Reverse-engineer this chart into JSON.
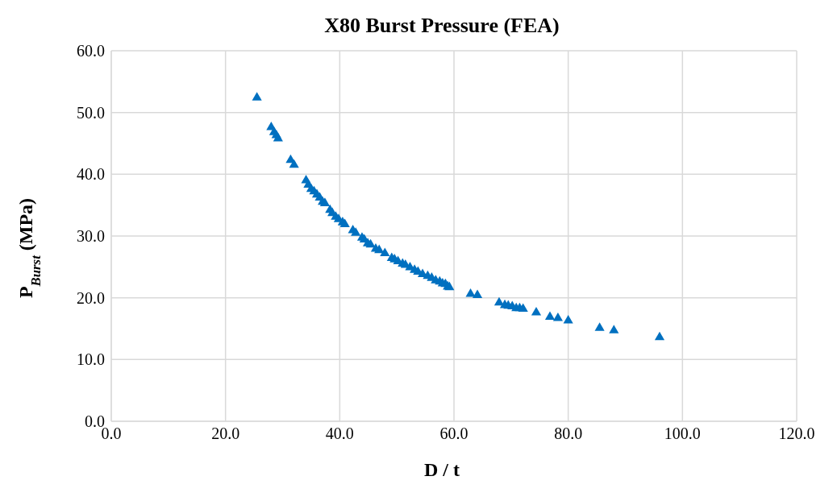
{
  "chart_data": {
    "type": "scatter",
    "title": "X80 Burst Pressure (FEA)",
    "xlabel": "D / t",
    "ylabel": "P$_{Burst}$ (MPa)",
    "marker": "triangle",
    "grid": true,
    "xlim": [
      0,
      120
    ],
    "ylim": [
      0,
      60
    ],
    "xticks": [
      {
        "value": 0,
        "label": "0.0"
      },
      {
        "value": 20,
        "label": "20.0"
      },
      {
        "value": 40,
        "label": "40.0"
      },
      {
        "value": 60,
        "label": "60.0"
      },
      {
        "value": 80,
        "label": "80.0"
      },
      {
        "value": 100,
        "label": "100.0"
      },
      {
        "value": 120,
        "label": "120.0"
      }
    ],
    "yticks": [
      {
        "value": 0,
        "label": "0.0"
      },
      {
        "value": 10,
        "label": "10.0"
      },
      {
        "value": 20,
        "label": "20.0"
      },
      {
        "value": 30,
        "label": "30.0"
      },
      {
        "value": 40,
        "label": "40.0"
      },
      {
        "value": 50,
        "label": "50.0"
      },
      {
        "value": 60,
        "label": "60.0"
      }
    ],
    "series": [
      {
        "color": "#0070c0",
        "x": [
          25.5,
          28.0,
          28.5,
          28.9,
          29.2,
          31.4,
          32.0,
          34.1,
          34.5,
          35.0,
          35.5,
          36.0,
          36.5,
          37.0,
          37.4,
          38.3,
          38.7,
          39.3,
          39.8,
          40.5,
          40.9,
          42.3,
          42.8,
          43.9,
          44.3,
          44.9,
          45.4,
          46.3,
          46.9,
          47.9,
          49.1,
          49.6,
          50.2,
          51.0,
          51.5,
          52.3,
          53.1,
          53.7,
          54.5,
          55.4,
          56.1,
          56.8,
          57.5,
          58.0,
          58.5,
          58.9,
          59.2,
          62.9,
          64.1,
          67.9,
          68.9,
          69.5,
          70.2,
          70.9,
          71.5,
          72.1,
          74.4,
          76.8,
          78.2,
          80.0,
          85.5,
          88.0,
          96.0
        ],
        "values": [
          52.4,
          47.6,
          46.8,
          46.3,
          45.8,
          42.3,
          41.5,
          39.0,
          38.3,
          37.6,
          37.2,
          36.7,
          36.2,
          35.5,
          35.3,
          34.2,
          33.7,
          33.1,
          32.7,
          32.2,
          31.9,
          30.9,
          30.5,
          29.7,
          29.4,
          28.8,
          28.6,
          27.9,
          27.7,
          27.2,
          26.4,
          26.2,
          25.9,
          25.5,
          25.3,
          24.9,
          24.5,
          24.2,
          23.8,
          23.5,
          23.2,
          22.8,
          22.6,
          22.3,
          22.2,
          21.8,
          21.7,
          20.6,
          20.4,
          19.2,
          18.8,
          18.7,
          18.6,
          18.3,
          18.3,
          18.2,
          17.6,
          16.9,
          16.7,
          16.3,
          15.1,
          14.7,
          13.6
        ]
      }
    ]
  }
}
